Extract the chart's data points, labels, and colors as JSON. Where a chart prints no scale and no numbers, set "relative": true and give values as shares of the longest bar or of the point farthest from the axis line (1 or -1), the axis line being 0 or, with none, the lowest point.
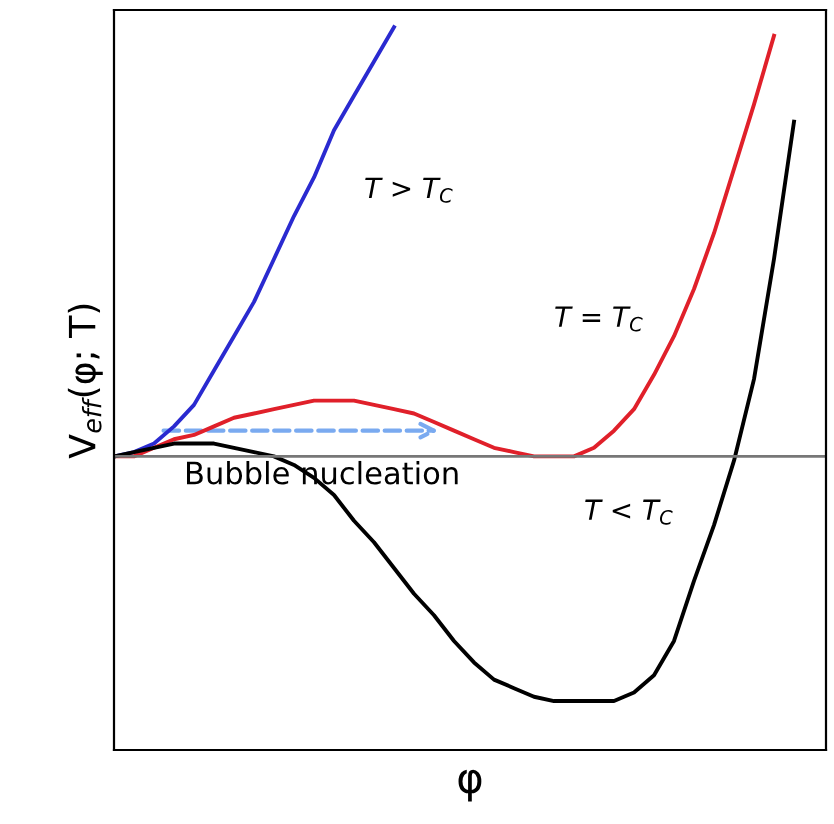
{
  "chart_data": {
    "type": "line",
    "relative": true,
    "xlabel": "φ",
    "ylabel": "V$_{eff}$(φ; T)",
    "categories": [
      null,
      null,
      null,
      null,
      null,
      null,
      null,
      null,
      null,
      null,
      null,
      null,
      null,
      null,
      null,
      null,
      null,
      null,
      null,
      null,
      null,
      null,
      null,
      null,
      null,
      null,
      null,
      null,
      null,
      null,
      null,
      null,
      null,
      null,
      null,
      null
    ],
    "series": [
      {
        "color": "#2a2ad0",
        "values": [
          0,
          0.01,
          0.03,
          0.07,
          0.12,
          0.2,
          0.28,
          0.36,
          0.46,
          0.56,
          0.65,
          0.76,
          0.84,
          0.92,
          1.0,
          null,
          null,
          null,
          null,
          null,
          null,
          null,
          null,
          null,
          null,
          null,
          null,
          null,
          null,
          null,
          null,
          null,
          null,
          null,
          null,
          null
        ]
      },
      {
        "color": "#e0202a",
        "values": [
          0,
          0,
          0.02,
          0.04,
          0.05,
          0.07,
          0.09,
          0.1,
          0.11,
          0.12,
          0.13,
          0.13,
          0.13,
          0.12,
          0.11,
          0.1,
          0.08,
          0.06,
          0.04,
          0.02,
          0.01,
          0,
          0,
          0,
          0.02,
          0.06,
          0.11,
          0.19,
          0.28,
          0.39,
          0.52,
          0.67,
          0.82,
          0.98,
          null,
          null
        ]
      },
      {
        "color": "#000000",
        "values": [
          0,
          0.01,
          0.02,
          0.03,
          0.03,
          0.03,
          0.02,
          0.01,
          0,
          -0.02,
          -0.05,
          -0.09,
          -0.15,
          -0.2,
          -0.26,
          -0.32,
          -0.37,
          -0.43,
          -0.48,
          -0.52,
          -0.54,
          -0.56,
          -0.57,
          -0.57,
          -0.57,
          -0.57,
          -0.55,
          -0.51,
          -0.43,
          -0.29,
          -0.16,
          -0.01,
          0.18,
          0.46,
          0.78,
          null
        ]
      }
    ],
    "annotations": [
      "T > T$_{C}$",
      "T = T$_{C}$",
      "T < T$_{C}$",
      "Bubble nucleation"
    ],
    "legend": false,
    "marker": "none",
    "line_style": "solid"
  }
}
